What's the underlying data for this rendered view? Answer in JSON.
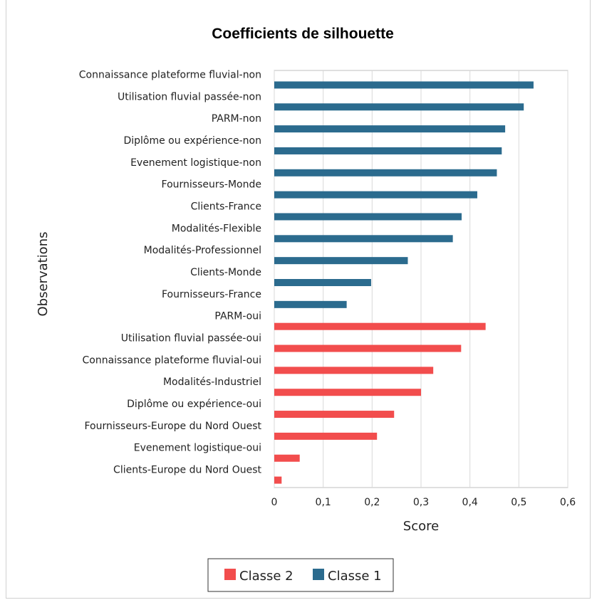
{
  "chart_data": {
    "type": "bar",
    "orientation": "horizontal",
    "title": "Coefficients de silhouette",
    "xlabel": "Score",
    "ylabel": "Observations",
    "xlim": [
      0,
      0.6
    ],
    "xticks": [
      "0",
      "0,1",
      "0,2",
      "0,3",
      "0,4",
      "0,5",
      "0,6"
    ],
    "grid": "vertical",
    "legend": {
      "position": "bottom",
      "entries": [
        "Classe 2",
        "Classe 1"
      ]
    },
    "colors": {
      "Classe 1": "#2b6b8e",
      "Classe 2": "#f24d4d"
    },
    "bars": [
      {
        "label": "Connaissance plateforme fluvial-non",
        "value": 0.53,
        "series": "Classe 1"
      },
      {
        "label": "Utilisation fluvial passée-non",
        "value": 0.51,
        "series": "Classe 1"
      },
      {
        "label": "PARM-non",
        "value": 0.472,
        "series": "Classe 1"
      },
      {
        "label": "Diplôme ou expérience-non",
        "value": 0.465,
        "series": "Classe 1"
      },
      {
        "label": "Evenement logistique-non",
        "value": 0.455,
        "series": "Classe 1"
      },
      {
        "label": "Fournisseurs-Monde",
        "value": 0.415,
        "series": "Classe 1"
      },
      {
        "label": "Clients-France",
        "value": 0.383,
        "series": "Classe 1"
      },
      {
        "label": "Modalités-Flexible",
        "value": 0.365,
        "series": "Classe 1"
      },
      {
        "label": "Modalités-Professionnel",
        "value": 0.273,
        "series": "Classe 1"
      },
      {
        "label": "Clients-Monde",
        "value": 0.198,
        "series": "Classe 1"
      },
      {
        "label": "Fournisseurs-France",
        "value": 0.148,
        "series": "Classe 1"
      },
      {
        "label": "PARM-oui",
        "value": 0.432,
        "series": "Classe 2"
      },
      {
        "label": "Utilisation fluvial passée-oui",
        "value": 0.382,
        "series": "Classe 2"
      },
      {
        "label": "Connaissance plateforme fluvial-oui",
        "value": 0.325,
        "series": "Classe 2"
      },
      {
        "label": "Modalités-Industriel",
        "value": 0.3,
        "series": "Classe 2"
      },
      {
        "label": "Diplôme ou expérience-oui",
        "value": 0.245,
        "series": "Classe 2"
      },
      {
        "label": "Fournisseurs-Europe du Nord Ouest",
        "value": 0.21,
        "series": "Classe 2"
      },
      {
        "label": "Evenement logistique-oui",
        "value": 0.052,
        "series": "Classe 2"
      },
      {
        "label": "Clients-Europe du Nord Ouest",
        "value": 0.015,
        "series": "Classe 2"
      }
    ]
  }
}
